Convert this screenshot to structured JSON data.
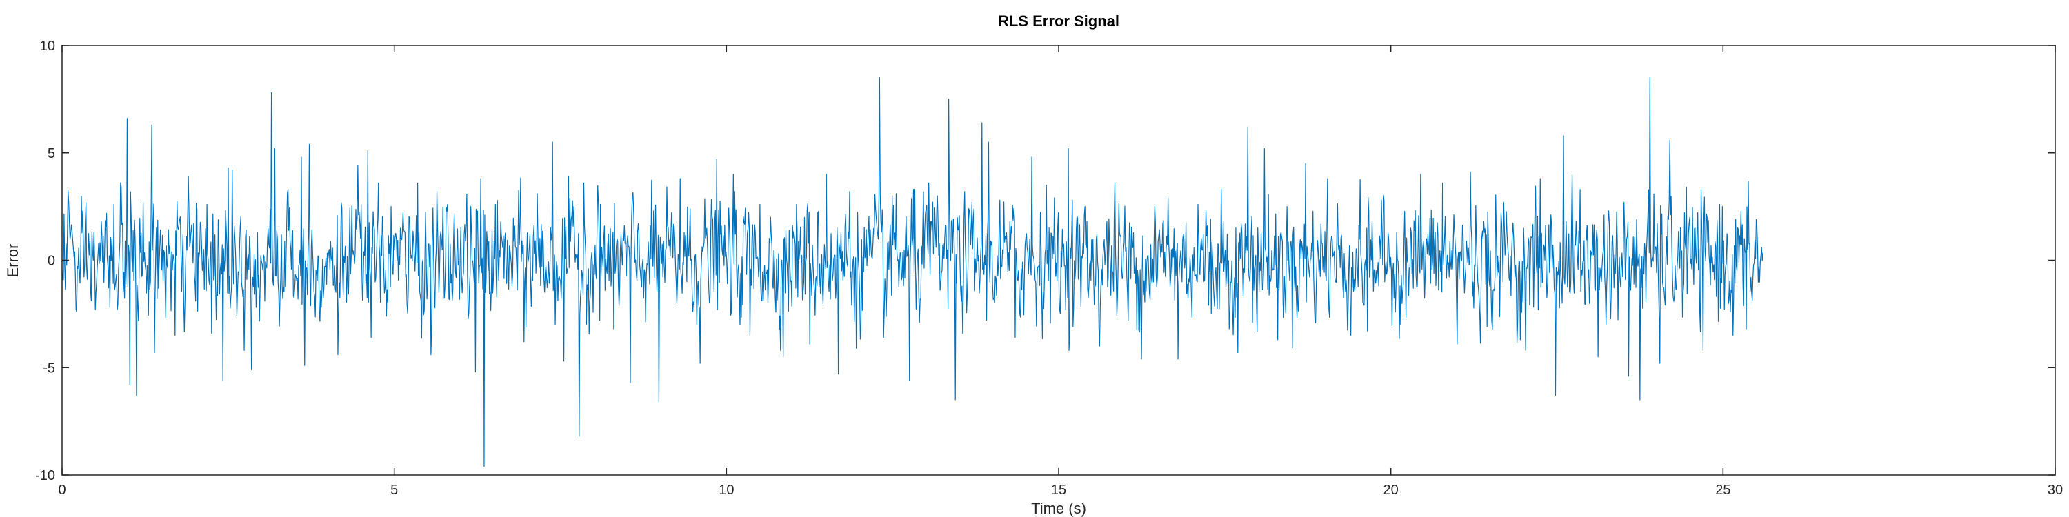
{
  "chart_data": {
    "type": "line",
    "title": "RLS Error Signal",
    "xlabel": "Time (s)",
    "ylabel": "Error",
    "xlim": [
      0,
      30
    ],
    "ylim": [
      -10,
      10
    ],
    "xticks": [
      0,
      5,
      10,
      15,
      20,
      25,
      30
    ],
    "yticks": [
      -10,
      -5,
      0,
      5,
      10
    ],
    "grid": false,
    "line_color": "#0072BD",
    "series": [
      {
        "name": "",
        "x_start": 0,
        "x_end": 25.6,
        "points_count": 2560,
        "peaks": [
          {
            "x": 0.1,
            "y": 2.7
          },
          {
            "x": 0.35,
            "y": 1.8
          },
          {
            "x": 0.5,
            "y": -2.3
          },
          {
            "x": 0.78,
            "y": 2.6
          },
          {
            "x": 0.88,
            "y": 3.6
          },
          {
            "x": 0.98,
            "y": 6.6
          },
          {
            "x": 1.02,
            "y": -5.8
          },
          {
            "x": 1.12,
            "y": -6.3
          },
          {
            "x": 1.35,
            "y": 6.3
          },
          {
            "x": 1.39,
            "y": -4.3
          },
          {
            "x": 1.7,
            "y": -3.5
          },
          {
            "x": 1.9,
            "y": 3.9
          },
          {
            "x": 2.18,
            "y": 2.6
          },
          {
            "x": 2.25,
            "y": -3.4
          },
          {
            "x": 2.42,
            "y": -5.6
          },
          {
            "x": 2.5,
            "y": 4.3
          },
          {
            "x": 2.56,
            "y": 4.2
          },
          {
            "x": 2.85,
            "y": -5.1
          },
          {
            "x": 3.05,
            "y": -1.9
          },
          {
            "x": 3.15,
            "y": 7.8
          },
          {
            "x": 3.2,
            "y": 5.2
          },
          {
            "x": 3.4,
            "y": 3.3
          },
          {
            "x": 3.6,
            "y": 4.8
          },
          {
            "x": 3.65,
            "y": -4.9
          },
          {
            "x": 3.72,
            "y": 5.4
          },
          {
            "x": 4.15,
            "y": -4.4
          },
          {
            "x": 4.45,
            "y": 4.4
          },
          {
            "x": 4.6,
            "y": 5.1
          },
          {
            "x": 4.65,
            "y": -3.6
          },
          {
            "x": 4.95,
            "y": 2.5
          },
          {
            "x": 5.35,
            "y": 3.6
          },
          {
            "x": 5.55,
            "y": -4.4
          },
          {
            "x": 5.8,
            "y": 2.6
          },
          {
            "x": 6.15,
            "y": 2.5
          },
          {
            "x": 6.22,
            "y": -5.2
          },
          {
            "x": 6.3,
            "y": 3.8
          },
          {
            "x": 6.35,
            "y": -9.6
          },
          {
            "x": 6.52,
            "y": 2.6
          },
          {
            "x": 6.95,
            "y": -3.8
          },
          {
            "x": 7.15,
            "y": 3.1
          },
          {
            "x": 7.38,
            "y": 5.5
          },
          {
            "x": 7.55,
            "y": -4.7
          },
          {
            "x": 7.62,
            "y": 3.9
          },
          {
            "x": 7.78,
            "y": -8.2
          },
          {
            "x": 7.85,
            "y": 3.6
          },
          {
            "x": 8.1,
            "y": 2.6
          },
          {
            "x": 8.3,
            "y": -3.2
          },
          {
            "x": 8.55,
            "y": -5.7
          },
          {
            "x": 8.9,
            "y": 2.3
          },
          {
            "x": 8.98,
            "y": -6.6
          },
          {
            "x": 9.3,
            "y": 3.8
          },
          {
            "x": 9.45,
            "y": 2.4
          },
          {
            "x": 9.6,
            "y": -4.8
          },
          {
            "x": 9.85,
            "y": 4.7
          },
          {
            "x": 10.1,
            "y": 4.0
          },
          {
            "x": 10.35,
            "y": -3.5
          },
          {
            "x": 10.5,
            "y": 2.6
          },
          {
            "x": 10.85,
            "y": -4.5
          },
          {
            "x": 11.05,
            "y": 2.6
          },
          {
            "x": 11.25,
            "y": -3.9
          },
          {
            "x": 11.5,
            "y": 4.0
          },
          {
            "x": 11.68,
            "y": -5.3
          },
          {
            "x": 11.85,
            "y": 3.2
          },
          {
            "x": 11.95,
            "y": -4.1
          },
          {
            "x": 12.3,
            "y": 8.5
          },
          {
            "x": 12.36,
            "y": -3.6
          },
          {
            "x": 12.55,
            "y": 3.1
          },
          {
            "x": 12.75,
            "y": -5.6
          },
          {
            "x": 12.82,
            "y": 3.3
          },
          {
            "x": 13.05,
            "y": 3.6
          },
          {
            "x": 13.18,
            "y": 3.0
          },
          {
            "x": 13.35,
            "y": 7.5
          },
          {
            "x": 13.45,
            "y": -6.5
          },
          {
            "x": 13.5,
            "y": 1.4
          },
          {
            "x": 13.85,
            "y": 6.4
          },
          {
            "x": 13.95,
            "y": 5.5
          },
          {
            "x": 14.12,
            "y": 2.8
          },
          {
            "x": 14.35,
            "y": -3.6
          },
          {
            "x": 14.6,
            "y": 4.8
          },
          {
            "x": 14.82,
            "y": 3.5
          },
          {
            "x": 15.15,
            "y": 5.2
          },
          {
            "x": 15.22,
            "y": -3.1
          },
          {
            "x": 15.4,
            "y": 2.5
          },
          {
            "x": 15.62,
            "y": -4.0
          },
          {
            "x": 15.85,
            "y": 3.6
          },
          {
            "x": 16.05,
            "y": -2.8
          },
          {
            "x": 16.25,
            "y": -4.6
          },
          {
            "x": 16.45,
            "y": 2.5
          },
          {
            "x": 16.65,
            "y": 2.9
          },
          {
            "x": 16.8,
            "y": -4.6
          },
          {
            "x": 17.1,
            "y": 2.6
          },
          {
            "x": 17.3,
            "y": -2.5
          },
          {
            "x": 17.45,
            "y": 3.3
          },
          {
            "x": 17.7,
            "y": -4.3
          },
          {
            "x": 17.85,
            "y": 6.2
          },
          {
            "x": 17.92,
            "y": -2.9
          },
          {
            "x": 18.1,
            "y": 5.2
          },
          {
            "x": 18.3,
            "y": -3.7
          },
          {
            "x": 18.72,
            "y": 4.5
          },
          {
            "x": 19.05,
            "y": 3.8
          },
          {
            "x": 19.4,
            "y": -3.5
          },
          {
            "x": 19.65,
            "y": -3.3
          },
          {
            "x": 19.9,
            "y": 2.8
          },
          {
            "x": 20.15,
            "y": -3.0
          },
          {
            "x": 20.45,
            "y": 4.0
          },
          {
            "x": 20.78,
            "y": 3.6
          },
          {
            "x": 21.0,
            "y": -3.9
          },
          {
            "x": 21.2,
            "y": 4.1
          },
          {
            "x": 21.45,
            "y": -3.1
          },
          {
            "x": 21.7,
            "y": 2.7
          },
          {
            "x": 21.95,
            "y": -3.7
          },
          {
            "x": 22.25,
            "y": 3.8
          },
          {
            "x": 22.48,
            "y": -6.3
          },
          {
            "x": 22.6,
            "y": 5.8
          },
          {
            "x": 22.85,
            "y": 3.3
          },
          {
            "x": 23.12,
            "y": -4.5
          },
          {
            "x": 23.28,
            "y": 2.3
          },
          {
            "x": 23.58,
            "y": -5.4
          },
          {
            "x": 23.75,
            "y": -6.5
          },
          {
            "x": 23.9,
            "y": 8.5
          },
          {
            "x": 24.05,
            "y": -4.8
          },
          {
            "x": 24.2,
            "y": 5.6
          },
          {
            "x": 24.45,
            "y": 3.4
          },
          {
            "x": 24.7,
            "y": -4.2
          },
          {
            "x": 24.95,
            "y": 2.6
          },
          {
            "x": 25.15,
            "y": -3.5
          },
          {
            "x": 25.35,
            "y": -3.2
          },
          {
            "x": 25.5,
            "y": 1.9
          }
        ]
      }
    ]
  }
}
